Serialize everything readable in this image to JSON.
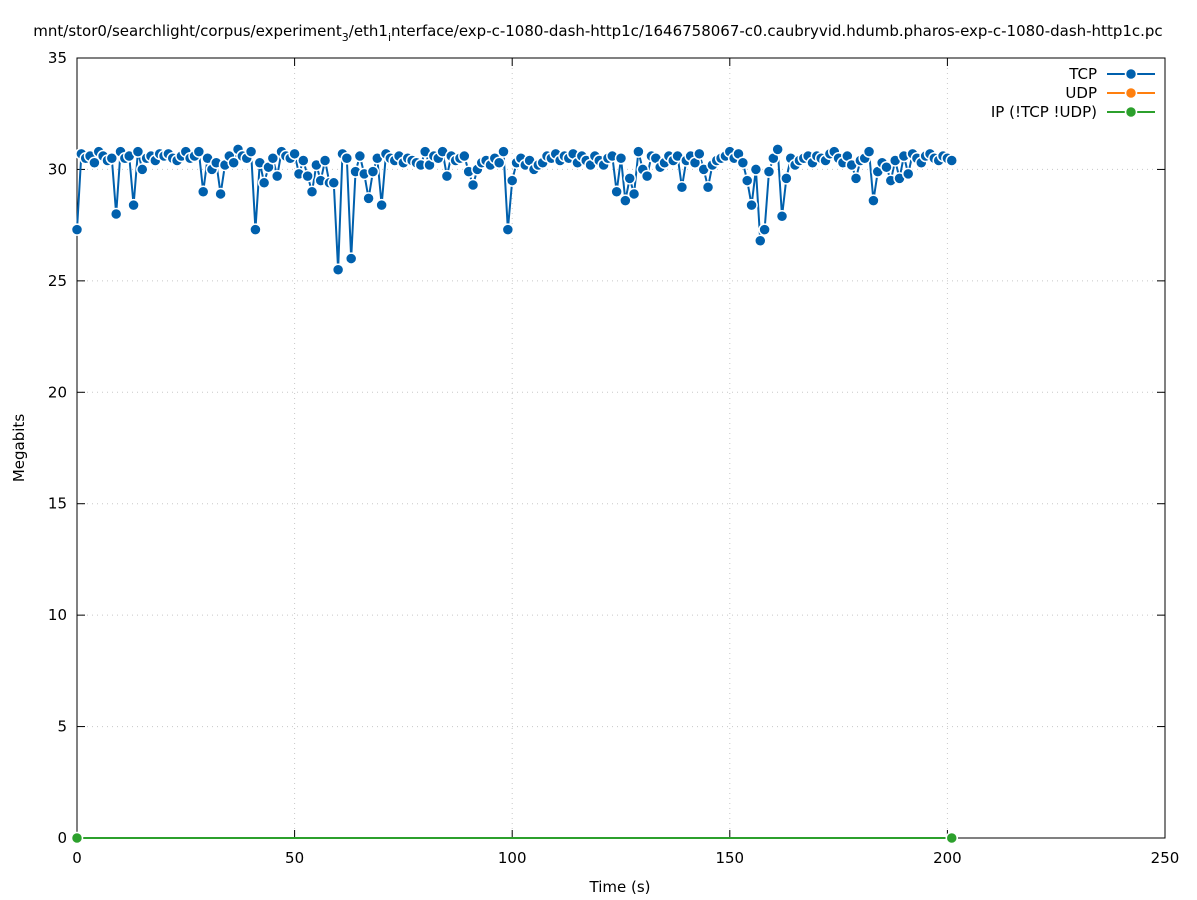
{
  "chart_data": {
    "type": "line",
    "title": [
      "mnt/stor0/searchlight/corpus/experiment",
      "3",
      "/eth1",
      "i",
      "nterface/exp-c-1080-dash-http1c/1646758067-c0.caubryvid.hdumb.pharos-exp-c-1080-dash-http1c.pc"
    ],
    "x_label": "Time (s)",
    "y_label": "Megabits",
    "xlim": [
      0,
      250
    ],
    "xticks": [
      0,
      50,
      100,
      150,
      200,
      250
    ],
    "ylim": [
      0,
      35
    ],
    "yticks": [
      0,
      5,
      10,
      15,
      20,
      25,
      30,
      35
    ],
    "grid": true,
    "legend": "top-right",
    "series": [
      {
        "name": "TCP",
        "color": "#0060ad",
        "x": [
          0,
          1,
          2,
          3,
          4,
          5,
          6,
          7,
          8,
          9,
          10,
          11,
          12,
          13,
          14,
          15,
          16,
          17,
          18,
          19,
          20,
          21,
          22,
          23,
          24,
          25,
          26,
          27,
          28,
          29,
          30,
          31,
          32,
          33,
          34,
          35,
          36,
          37,
          38,
          39,
          40,
          41,
          42,
          43,
          44,
          45,
          46,
          47,
          48,
          49,
          50,
          51,
          52,
          53,
          54,
          55,
          56,
          57,
          58,
          59,
          60,
          61,
          62,
          63,
          64,
          65,
          66,
          67,
          68,
          69,
          70,
          71,
          72,
          73,
          74,
          75,
          76,
          77,
          78,
          79,
          80,
          81,
          82,
          83,
          84,
          85,
          86,
          87,
          88,
          89,
          90,
          91,
          92,
          93,
          94,
          95,
          96,
          97,
          98,
          99,
          100,
          101,
          102,
          103,
          104,
          105,
          106,
          107,
          108,
          109,
          110,
          111,
          112,
          113,
          114,
          115,
          116,
          117,
          118,
          119,
          120,
          121,
          122,
          123,
          124,
          125,
          126,
          127,
          128,
          129,
          130,
          131,
          132,
          133,
          134,
          135,
          136,
          137,
          138,
          139,
          140,
          141,
          142,
          143,
          144,
          145,
          146,
          147,
          148,
          149,
          150,
          151,
          152,
          153,
          154,
          155,
          156,
          157,
          158,
          159,
          160,
          161,
          162,
          163,
          164,
          165,
          166,
          167,
          168,
          169,
          170,
          171,
          172,
          173,
          174,
          175,
          176,
          177,
          178,
          179,
          180,
          181,
          182,
          183,
          184,
          185,
          186,
          187,
          188,
          189,
          190,
          191,
          192,
          193,
          194,
          195,
          196,
          197,
          198,
          199,
          200,
          201
        ],
        "values": [
          27.3,
          30.7,
          30.5,
          30.6,
          30.3,
          30.8,
          30.6,
          30.4,
          30.5,
          28.0,
          30.8,
          30.5,
          30.6,
          28.4,
          30.8,
          30.0,
          30.5,
          30.6,
          30.4,
          30.7,
          30.6,
          30.7,
          30.5,
          30.4,
          30.6,
          30.8,
          30.5,
          30.6,
          30.8,
          29.0,
          30.5,
          30.0,
          30.3,
          28.9,
          30.2,
          30.6,
          30.3,
          30.9,
          30.6,
          30.5,
          30.8,
          27.3,
          30.3,
          29.4,
          30.1,
          30.5,
          29.7,
          30.8,
          30.6,
          30.5,
          30.7,
          29.8,
          30.4,
          29.7,
          29.0,
          30.2,
          29.5,
          30.4,
          29.4,
          29.4,
          25.5,
          30.7,
          30.5,
          26.0,
          29.9,
          30.6,
          29.8,
          28.7,
          29.9,
          30.5,
          28.4,
          30.7,
          30.5,
          30.4,
          30.6,
          30.3,
          30.5,
          30.4,
          30.3,
          30.2,
          30.8,
          30.2,
          30.6,
          30.5,
          30.8,
          29.7,
          30.6,
          30.4,
          30.5,
          30.6,
          29.9,
          29.3,
          30.0,
          30.3,
          30.4,
          30.2,
          30.5,
          30.3,
          30.8,
          27.3,
          29.5,
          30.3,
          30.5,
          30.2,
          30.4,
          30.0,
          30.2,
          30.3,
          30.6,
          30.5,
          30.7,
          30.4,
          30.6,
          30.5,
          30.7,
          30.3,
          30.6,
          30.4,
          30.2,
          30.6,
          30.4,
          30.2,
          30.5,
          30.6,
          29.0,
          30.5,
          28.6,
          29.6,
          28.9,
          30.8,
          30.0,
          29.7,
          30.6,
          30.5,
          30.1,
          30.3,
          30.6,
          30.4,
          30.6,
          29.2,
          30.4,
          30.6,
          30.3,
          30.7,
          30.0,
          29.2,
          30.2,
          30.4,
          30.5,
          30.6,
          30.8,
          30.5,
          30.7,
          30.3,
          29.5,
          28.4,
          30.0,
          26.8,
          27.3,
          29.9,
          30.5,
          30.9,
          27.9,
          29.6,
          30.5,
          30.2,
          30.4,
          30.5,
          30.6,
          30.3,
          30.6,
          30.5,
          30.4,
          30.7,
          30.8,
          30.5,
          30.3,
          30.6,
          30.2,
          29.6,
          30.4,
          30.5,
          30.8,
          28.6,
          29.9,
          30.3,
          30.1,
          29.5,
          30.4,
          29.6,
          30.6,
          29.8,
          30.7,
          30.5,
          30.3,
          30.6,
          30.7,
          30.5,
          30.4,
          30.6,
          30.5,
          30.4
        ]
      },
      {
        "name": "UDP",
        "color": "#ff7f0e",
        "x": [],
        "values": []
      },
      {
        "name": "IP (!TCP  !UDP)",
        "color": "#2ca02c",
        "x": [
          0,
          201
        ],
        "values": [
          0,
          0
        ]
      }
    ]
  }
}
